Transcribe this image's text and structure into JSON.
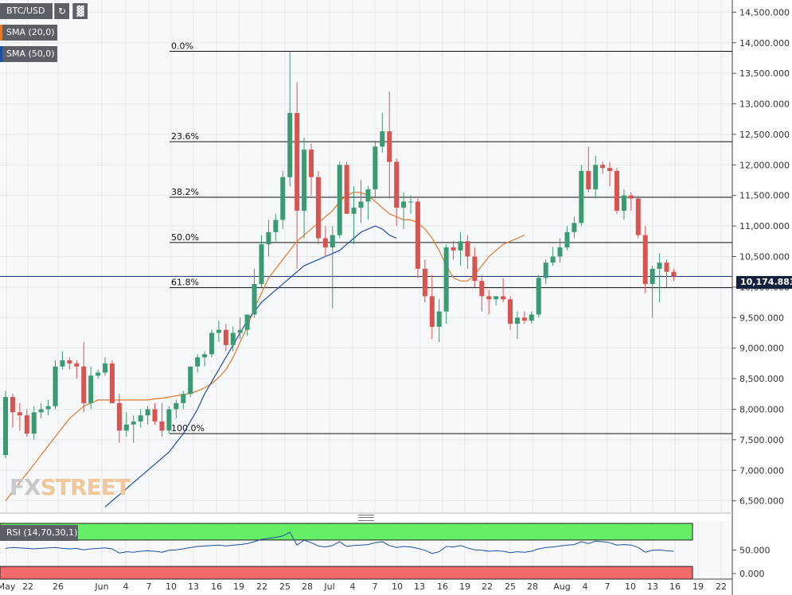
{
  "toolbar": {
    "symbol": "BTC/USD",
    "sma20_label": "SMA (20,0)",
    "sma50_label": "SMA (50,0)",
    "rsi_label": "RSI (14,70,30,1)",
    "refresh_icon": "refresh-icon",
    "bars_icon": "bar-chart-icon"
  },
  "watermark": {
    "text_fx": "FX",
    "text_street": "STREET"
  },
  "colors": {
    "bull": "#3a9b73",
    "bear": "#d9534f",
    "sma20": "#e07b2a",
    "sma50": "#1f4fa0",
    "rsi_line": "#1f4fa0",
    "rsi_overbought": "#66ee66",
    "rsi_oversold": "#f56a6a",
    "price_tag": "#14213d"
  },
  "chart_data": {
    "type": "candlestick",
    "title": "BTC/USD",
    "ylim": [
      6300,
      14700
    ],
    "y_ticks": [
      "6,500.000",
      "7,000.000",
      "7,500.000",
      "8,000.000",
      "8,500.000",
      "9,000.000",
      "9,500.000",
      "10,000.000",
      "10,500.000",
      "11,000.000",
      "11,500.000",
      "12,000.000",
      "12,500.000",
      "13,000.000",
      "13,500.000",
      "14,000.000",
      "14,500.000"
    ],
    "y_tick_values": [
      6500,
      7000,
      7500,
      8000,
      8500,
      9000,
      9500,
      10000,
      10500,
      11000,
      11500,
      12000,
      12500,
      13000,
      13500,
      14000,
      14500
    ],
    "x_labels": [
      "May",
      "22",
      "26",
      "Jun",
      "4",
      "7",
      "10",
      "13",
      "16",
      "19",
      "22",
      "25",
      "28",
      "Jul",
      "4",
      "7",
      "10",
      "13",
      "16",
      "19",
      "22",
      "25",
      "28",
      "Aug",
      "4",
      "7",
      "10",
      "13",
      "16",
      "19",
      "22"
    ],
    "current_price": 10174.883,
    "current_price_label": "10,174.883",
    "fib_levels": [
      {
        "label": "0.0%",
        "value": 13860
      },
      {
        "label": "23.6%",
        "value": 12380
      },
      {
        "label": "38.2%",
        "value": 11470
      },
      {
        "label": "50.0%",
        "value": 10730
      },
      {
        "label": "61.8%",
        "value": 9990
      },
      {
        "label": "100.0%",
        "value": 7600
      }
    ],
    "candles": [
      {
        "o": 7250,
        "h": 8300,
        "l": 7200,
        "c": 8200
      },
      {
        "o": 8200,
        "h": 8250,
        "l": 7700,
        "c": 7950
      },
      {
        "o": 7950,
        "h": 8100,
        "l": 7650,
        "c": 7900
      },
      {
        "o": 7900,
        "h": 8000,
        "l": 7550,
        "c": 7600
      },
      {
        "o": 7600,
        "h": 8050,
        "l": 7500,
        "c": 7950
      },
      {
        "o": 7950,
        "h": 8100,
        "l": 7850,
        "c": 8000
      },
      {
        "o": 8000,
        "h": 8150,
        "l": 7900,
        "c": 8050
      },
      {
        "o": 8050,
        "h": 8800,
        "l": 8000,
        "c": 8700
      },
      {
        "o": 8700,
        "h": 8950,
        "l": 8650,
        "c": 8800
      },
      {
        "o": 8800,
        "h": 8850,
        "l": 8650,
        "c": 8750
      },
      {
        "o": 8750,
        "h": 8800,
        "l": 8500,
        "c": 8700
      },
      {
        "o": 8700,
        "h": 9100,
        "l": 7950,
        "c": 8100
      },
      {
        "o": 8100,
        "h": 8700,
        "l": 8000,
        "c": 8550
      },
      {
        "o": 8550,
        "h": 8650,
        "l": 8500,
        "c": 8600
      },
      {
        "o": 8600,
        "h": 8850,
        "l": 8550,
        "c": 8750
      },
      {
        "o": 8750,
        "h": 8800,
        "l": 8100,
        "c": 8100
      },
      {
        "o": 8100,
        "h": 8250,
        "l": 7450,
        "c": 7650
      },
      {
        "o": 7650,
        "h": 7950,
        "l": 7550,
        "c": 7750
      },
      {
        "o": 7750,
        "h": 7900,
        "l": 7450,
        "c": 7800
      },
      {
        "o": 7800,
        "h": 8000,
        "l": 7700,
        "c": 7900
      },
      {
        "o": 7900,
        "h": 8050,
        "l": 7750,
        "c": 8000
      },
      {
        "o": 8000,
        "h": 8100,
        "l": 7750,
        "c": 7800
      },
      {
        "o": 7800,
        "h": 8100,
        "l": 7550,
        "c": 7650
      },
      {
        "o": 7650,
        "h": 8050,
        "l": 7600,
        "c": 8000
      },
      {
        "o": 8000,
        "h": 8150,
        "l": 7850,
        "c": 8100
      },
      {
        "o": 8100,
        "h": 8300,
        "l": 8000,
        "c": 8250
      },
      {
        "o": 8250,
        "h": 8700,
        "l": 8200,
        "c": 8700
      },
      {
        "o": 8700,
        "h": 8900,
        "l": 8600,
        "c": 8850
      },
      {
        "o": 8850,
        "h": 8950,
        "l": 8700,
        "c": 8900
      },
      {
        "o": 8900,
        "h": 9300,
        "l": 8850,
        "c": 9250
      },
      {
        "o": 9250,
        "h": 9450,
        "l": 9100,
        "c": 9300
      },
      {
        "o": 9300,
        "h": 9400,
        "l": 8950,
        "c": 9050
      },
      {
        "o": 9050,
        "h": 9350,
        "l": 8950,
        "c": 9250
      },
      {
        "o": 9250,
        "h": 9500,
        "l": 9150,
        "c": 9300
      },
      {
        "o": 9300,
        "h": 9550,
        "l": 9200,
        "c": 9550
      },
      {
        "o": 9550,
        "h": 10300,
        "l": 9500,
        "c": 10050
      },
      {
        "o": 10050,
        "h": 10850,
        "l": 10000,
        "c": 10700
      },
      {
        "o": 10700,
        "h": 11100,
        "l": 10500,
        "c": 10900
      },
      {
        "o": 10900,
        "h": 11200,
        "l": 10750,
        "c": 11100
      },
      {
        "o": 11100,
        "h": 11900,
        "l": 10950,
        "c": 11800
      },
      {
        "o": 11800,
        "h": 13850,
        "l": 11650,
        "c": 12850
      },
      {
        "o": 12850,
        "h": 13350,
        "l": 10300,
        "c": 11250
      },
      {
        "o": 11250,
        "h": 12450,
        "l": 10800,
        "c": 12250
      },
      {
        "o": 12250,
        "h": 12350,
        "l": 11500,
        "c": 11800
      },
      {
        "o": 11800,
        "h": 11900,
        "l": 10700,
        "c": 10800
      },
      {
        "o": 10800,
        "h": 11000,
        "l": 10500,
        "c": 10650
      },
      {
        "o": 10650,
        "h": 11000,
        "l": 9650,
        "c": 10850
      },
      {
        "o": 10850,
        "h": 12050,
        "l": 10800,
        "c": 12000
      },
      {
        "o": 12000,
        "h": 12050,
        "l": 11200,
        "c": 11200
      },
      {
        "o": 11200,
        "h": 11650,
        "l": 10700,
        "c": 11300
      },
      {
        "o": 11300,
        "h": 11750,
        "l": 11050,
        "c": 11400
      },
      {
        "o": 11400,
        "h": 11650,
        "l": 11100,
        "c": 11600
      },
      {
        "o": 11600,
        "h": 12400,
        "l": 11450,
        "c": 12300
      },
      {
        "o": 12300,
        "h": 12850,
        "l": 12200,
        "c": 12550
      },
      {
        "o": 12550,
        "h": 13200,
        "l": 11450,
        "c": 12050
      },
      {
        "o": 12050,
        "h": 12100,
        "l": 11000,
        "c": 11300
      },
      {
        "o": 11300,
        "h": 11550,
        "l": 10950,
        "c": 11400
      },
      {
        "o": 11400,
        "h": 11500,
        "l": 11200,
        "c": 11400
      },
      {
        "o": 11400,
        "h": 11450,
        "l": 10150,
        "c": 10300
      },
      {
        "o": 10300,
        "h": 10450,
        "l": 9750,
        "c": 9850
      },
      {
        "o": 9850,
        "h": 10200,
        "l": 9150,
        "c": 9350
      },
      {
        "o": 9350,
        "h": 9800,
        "l": 9100,
        "c": 9600
      },
      {
        "o": 9600,
        "h": 10700,
        "l": 9400,
        "c": 10650
      },
      {
        "o": 10650,
        "h": 10750,
        "l": 10450,
        "c": 10600
      },
      {
        "o": 10600,
        "h": 10900,
        "l": 10350,
        "c": 10750
      },
      {
        "o": 10750,
        "h": 10850,
        "l": 10300,
        "c": 10500
      },
      {
        "o": 10500,
        "h": 10650,
        "l": 10000,
        "c": 10100
      },
      {
        "o": 10100,
        "h": 10200,
        "l": 9600,
        "c": 9850
      },
      {
        "o": 9850,
        "h": 9950,
        "l": 9550,
        "c": 9800
      },
      {
        "o": 9800,
        "h": 9850,
        "l": 9700,
        "c": 9850
      },
      {
        "o": 9850,
        "h": 10150,
        "l": 9750,
        "c": 9800
      },
      {
        "o": 9800,
        "h": 9850,
        "l": 9300,
        "c": 9400
      },
      {
        "o": 9400,
        "h": 9600,
        "l": 9150,
        "c": 9500
      },
      {
        "o": 9500,
        "h": 9600,
        "l": 9400,
        "c": 9450
      },
      {
        "o": 9450,
        "h": 9600,
        "l": 9400,
        "c": 9550
      },
      {
        "o": 9550,
        "h": 10200,
        "l": 9500,
        "c": 10150
      },
      {
        "o": 10150,
        "h": 10450,
        "l": 10050,
        "c": 10400
      },
      {
        "o": 10400,
        "h": 10650,
        "l": 10350,
        "c": 10500
      },
      {
        "o": 10500,
        "h": 10800,
        "l": 10400,
        "c": 10650
      },
      {
        "o": 10650,
        "h": 11000,
        "l": 10600,
        "c": 10900
      },
      {
        "o": 10900,
        "h": 11150,
        "l": 10800,
        "c": 11050
      },
      {
        "o": 11050,
        "h": 12000,
        "l": 11000,
        "c": 11900
      },
      {
        "o": 11900,
        "h": 12300,
        "l": 11550,
        "c": 11600
      },
      {
        "o": 11600,
        "h": 12150,
        "l": 11450,
        "c": 12000
      },
      {
        "o": 12000,
        "h": 12050,
        "l": 11850,
        "c": 11950
      },
      {
        "o": 11950,
        "h": 12050,
        "l": 11650,
        "c": 11900
      },
      {
        "o": 11900,
        "h": 11950,
        "l": 11200,
        "c": 11250
      },
      {
        "o": 11250,
        "h": 11600,
        "l": 11100,
        "c": 11500
      },
      {
        "o": 11500,
        "h": 11550,
        "l": 11250,
        "c": 11450
      },
      {
        "o": 11450,
        "h": 11500,
        "l": 10800,
        "c": 10850
      },
      {
        "o": 10850,
        "h": 11000,
        "l": 9900,
        "c": 10050
      },
      {
        "o": 10050,
        "h": 10350,
        "l": 9500,
        "c": 10300
      },
      {
        "o": 10300,
        "h": 10550,
        "l": 9750,
        "c": 10400
      },
      {
        "o": 10400,
        "h": 10450,
        "l": 10000,
        "c": 10250
      },
      {
        "o": 10250,
        "h": 10300,
        "l": 10100,
        "c": 10175
      }
    ],
    "sma20": [
      6500,
      6650,
      6800,
      6950,
      7100,
      7250,
      7400,
      7550,
      7700,
      7850,
      7950,
      8050,
      8100,
      8150,
      8150,
      8150,
      8150,
      8150,
      8150,
      8150,
      8150,
      8170,
      8180,
      8200,
      8220,
      8240,
      8260,
      8300,
      8350,
      8420,
      8520,
      8650,
      8850,
      9100,
      9350,
      9650,
      9900,
      10150,
      10300,
      10450,
      10600,
      10750,
      10850,
      10950,
      11050,
      11150,
      11250,
      11400,
      11500,
      11550,
      11550,
      11500,
      11400,
      11300,
      11200,
      11150,
      11100,
      11100,
      11050,
      10950,
      10800,
      10600,
      10350,
      10150,
      10100,
      10100,
      10200,
      10350,
      10500,
      10600,
      10700,
      10750,
      10800,
      10850
    ],
    "sma20_start_index": 0,
    "sma50_start_index": 14,
    "sma50": [
      6400,
      6500,
      6600,
      6700,
      6800,
      6900,
      7000,
      7100,
      7200,
      7300,
      7450,
      7600,
      7800,
      8000,
      8250,
      8450,
      8650,
      8850,
      9050,
      9250,
      9450,
      9600,
      9750,
      9850,
      9950,
      10050,
      10150,
      10250,
      10350,
      10400,
      10450,
      10500,
      10550,
      10600,
      10700,
      10800,
      10900,
      10950,
      11000,
      10950,
      10850,
      10800
    ],
    "rsi": {
      "ylim": [
        0,
        100
      ],
      "y_ticks": [
        "0.000",
        "50.000"
      ],
      "y_tick_values": [
        0,
        50
      ],
      "overbought": 70,
      "oversold": 30,
      "values": [
        56,
        58,
        57,
        56,
        55,
        56,
        57,
        58,
        56,
        55,
        56,
        53,
        55,
        56,
        57,
        55,
        46,
        49,
        48,
        50,
        51,
        50,
        48,
        52,
        53,
        55,
        58,
        60,
        61,
        62,
        63,
        61,
        63,
        64,
        66,
        70,
        75,
        77,
        79,
        82,
        90,
        63,
        73,
        68,
        61,
        59,
        62,
        70,
        60,
        62,
        63,
        64,
        68,
        70,
        62,
        58,
        60,
        59,
        56,
        52,
        45,
        49,
        60,
        59,
        62,
        57,
        53,
        52,
        50,
        51,
        50,
        47,
        49,
        48,
        50,
        55,
        58,
        59,
        61,
        63,
        64,
        70,
        66,
        71,
        70,
        68,
        63,
        64,
        63,
        58,
        48,
        52,
        53,
        51,
        50
      ]
    }
  }
}
